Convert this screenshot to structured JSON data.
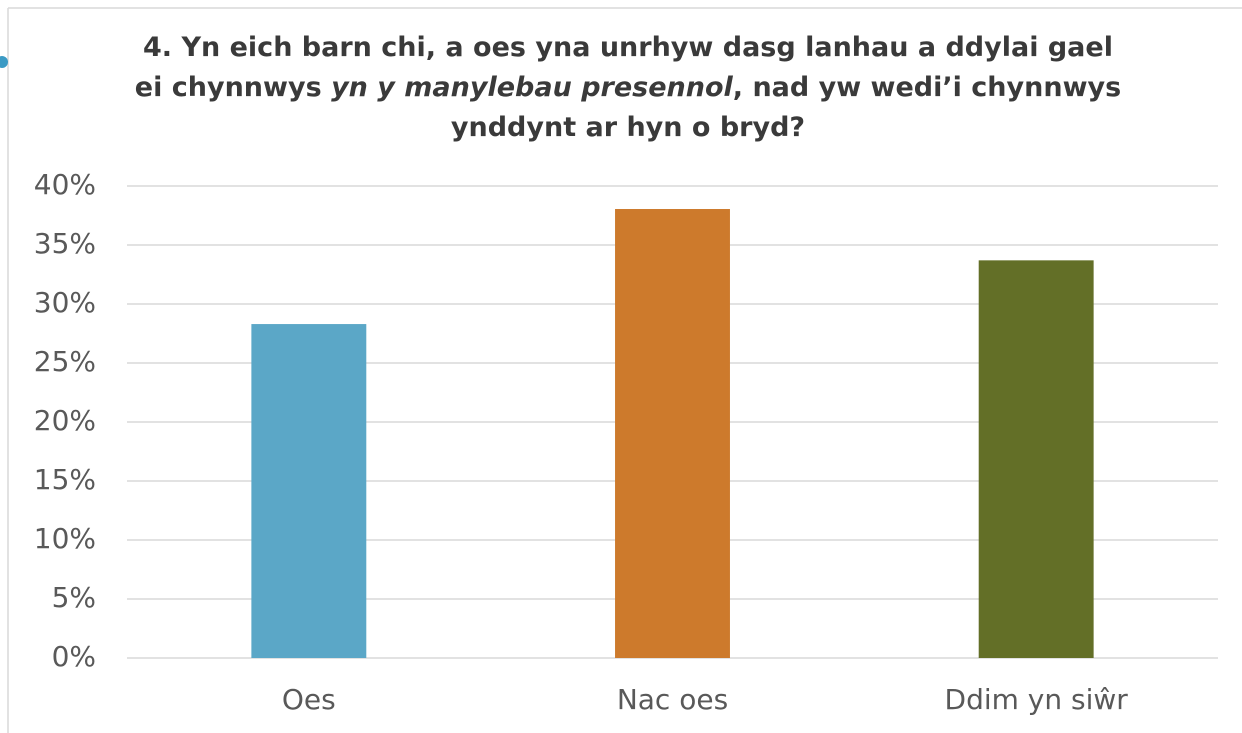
{
  "chart_data": {
    "type": "bar",
    "title": [
      "4.  Yn eich barn chi, a oes yna unrhyw dasg lanhau a ddylai gael ei chynnwys ",
      "yn y manylebau presennol",
      ", nad yw wedi’i chynnwys ynddynt ar hyn o bryd?"
    ],
    "categories": [
      "Oes",
      "Nac oes",
      "Ddim yn siŵr"
    ],
    "values": [
      28.3,
      38.05,
      33.7
    ],
    "colors": [
      "#5ba7c7",
      "#cd7a2c",
      "#636f27"
    ],
    "ylim": [
      0,
      40
    ],
    "yticks": [
      {
        "value": 0,
        "label": "0%"
      },
      {
        "value": 5,
        "label": "5%"
      },
      {
        "value": 10,
        "label": "10%"
      },
      {
        "value": 15,
        "label": "15%"
      },
      {
        "value": 20,
        "label": "20%"
      },
      {
        "value": 25,
        "label": "25%"
      },
      {
        "value": 30,
        "label": "30%"
      },
      {
        "value": 35,
        "label": "35%"
      },
      {
        "value": 40,
        "label": "40%"
      }
    ],
    "grid": true
  }
}
